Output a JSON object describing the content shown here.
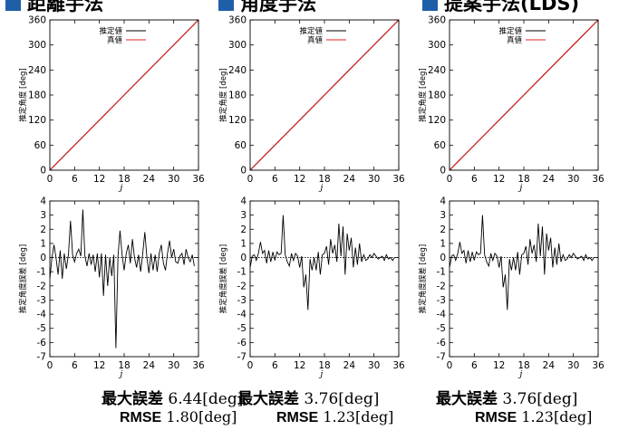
{
  "headers": [
    "距離手法",
    "角度手法",
    "提案手法(LDS)"
  ],
  "chart_data": [
    {
      "type": "line",
      "panel": "estimate",
      "method_index": 0,
      "xlabel": "j",
      "ylabel": "推定角度 [deg]",
      "xlim": [
        0,
        36
      ],
      "ylim": [
        0,
        360
      ],
      "xticks": [
        "0",
        "6",
        "12",
        "18",
        "24",
        "30",
        "36"
      ],
      "yticks": [
        "0",
        "60",
        "120",
        "180",
        "240",
        "300",
        "360"
      ],
      "legend_position": "top-left",
      "series": [
        {
          "name": "推定値",
          "color": "#000000",
          "x": [
            0,
            36
          ],
          "y": [
            0,
            360
          ]
        },
        {
          "name": "真値",
          "color": "#e02020",
          "x": [
            0,
            36
          ],
          "y": [
            0,
            360
          ]
        }
      ]
    },
    {
      "type": "line",
      "panel": "estimate",
      "method_index": 1,
      "xlabel": "j",
      "ylabel": "推定角度 [deg]",
      "xlim": [
        0,
        36
      ],
      "ylim": [
        0,
        360
      ],
      "xticks": [
        "0",
        "6",
        "12",
        "18",
        "24",
        "30",
        "36"
      ],
      "yticks": [
        "0",
        "60",
        "120",
        "180",
        "240",
        "300",
        "360"
      ],
      "legend_position": "top-left",
      "series": [
        {
          "name": "推定値",
          "color": "#000000",
          "x": [
            0,
            36
          ],
          "y": [
            0,
            360
          ]
        },
        {
          "name": "真値",
          "color": "#e02020",
          "x": [
            0,
            36
          ],
          "y": [
            0,
            360
          ]
        }
      ]
    },
    {
      "type": "line",
      "panel": "estimate",
      "method_index": 2,
      "xlabel": "j",
      "ylabel": "推定角度 [deg]",
      "xlim": [
        0,
        36
      ],
      "ylim": [
        0,
        360
      ],
      "xticks": [
        "0",
        "6",
        "12",
        "18",
        "24",
        "30",
        "36"
      ],
      "yticks": [
        "0",
        "60",
        "120",
        "180",
        "240",
        "300",
        "360"
      ],
      "legend_position": "top-left",
      "series": [
        {
          "name": "推定値",
          "color": "#000000",
          "x": [
            0,
            36
          ],
          "y": [
            0,
            360
          ]
        },
        {
          "name": "真値",
          "color": "#e02020",
          "x": [
            0,
            36
          ],
          "y": [
            0,
            360
          ]
        }
      ]
    },
    {
      "type": "line",
      "panel": "error",
      "method_index": 0,
      "xlabel": "j",
      "ylabel": "推定角度誤差 [deg]",
      "xlim": [
        0,
        36
      ],
      "ylim": [
        -7,
        4
      ],
      "xticks": [
        "0",
        "6",
        "12",
        "18",
        "24",
        "30",
        "36"
      ],
      "yticks": [
        "-7",
        "-6",
        "-5",
        "-4",
        "-3",
        "-2",
        "-1",
        "0",
        "1",
        "2",
        "3",
        "4"
      ],
      "series": [
        {
          "color": "#000000",
          "x": [
            0,
            0.5,
            1,
            1.5,
            2,
            2.5,
            3,
            3.5,
            4,
            4.5,
            5,
            5.5,
            6,
            6.5,
            7,
            7.5,
            8,
            8.5,
            9,
            9.5,
            10,
            10.5,
            11,
            11.5,
            12,
            12.5,
            13,
            13.5,
            14,
            14.5,
            15,
            15.5,
            16,
            16.5,
            17,
            17.5,
            18,
            18.5,
            19,
            19.5,
            20,
            20.5,
            21,
            21.5,
            22,
            22.5,
            23,
            23.5,
            24,
            24.5,
            25,
            25.5,
            26,
            26.5,
            27,
            27.5,
            28,
            28.5,
            29,
            29.5,
            30,
            30.5,
            31,
            31.5,
            32,
            32.5,
            33,
            33.5,
            34,
            34.5,
            35
          ],
          "y": [
            -1.5,
            0,
            0.9,
            0,
            -1.2,
            0.5,
            -1.5,
            0.3,
            -0.8,
            0.2,
            2.6,
            0.2,
            -0.3,
            0.3,
            0.6,
            0.1,
            3.4,
            0.1,
            -0.6,
            0.3,
            -0.5,
            0.2,
            -1.0,
            0.3,
            -1.4,
            0.3,
            -2.7,
            0.2,
            -2.0,
            0,
            -1.3,
            0.2,
            -6.4,
            0.1,
            1.9,
            0.2,
            -0.9,
            0.3,
            0.9,
            -0.4,
            1.3,
            0,
            -0.7,
            0.2,
            -1.0,
            0.3,
            1.8,
            0,
            -1.1,
            0.3,
            -0.9,
            0.2,
            -1.0,
            0.3,
            0.9,
            -0.4,
            -0.9,
            0.3,
            1.2,
            0,
            0.6,
            -0.3,
            -0.4,
            0.1,
            0.3,
            -0.5,
            0.6,
            0,
            -0.3,
            0.2,
            -0.6
          ]
        }
      ]
    },
    {
      "type": "line",
      "panel": "error",
      "method_index": 1,
      "xlabel": "j",
      "ylabel": "推定角度誤差 [deg]",
      "xlim": [
        0,
        36
      ],
      "ylim": [
        -7,
        4
      ],
      "xticks": [
        "0",
        "6",
        "12",
        "18",
        "24",
        "30",
        "36"
      ],
      "yticks": [
        "-7",
        "-6",
        "-5",
        "-4",
        "-3",
        "-2",
        "-1",
        "0",
        "1",
        "2",
        "3",
        "4"
      ],
      "series": [
        {
          "color": "#000000",
          "x": [
            0,
            0.5,
            1,
            1.5,
            2,
            2.5,
            3,
            3.5,
            4,
            4.5,
            5,
            5.5,
            6,
            6.5,
            7,
            7.5,
            8,
            8.5,
            9,
            9.5,
            10,
            10.5,
            11,
            11.5,
            12,
            12.5,
            13,
            13.5,
            14,
            14.5,
            15,
            15.5,
            16,
            16.5,
            17,
            17.5,
            18,
            18.5,
            19,
            19.5,
            20,
            20.5,
            21,
            21.5,
            22,
            22.5,
            23,
            23.5,
            24,
            24.5,
            25,
            25.5,
            26,
            26.5,
            27,
            27.5,
            28,
            28.5,
            29,
            29.5,
            30,
            30.5,
            31,
            31.5,
            32,
            32.5,
            33,
            33.5,
            34,
            34.5,
            35
          ],
          "y": [
            -0.7,
            0.1,
            0.2,
            -0.2,
            0.3,
            1.1,
            0.3,
            0.5,
            -0.4,
            0.5,
            -0.3,
            0.4,
            -0.2,
            0.4,
            0.2,
            0.3,
            3.0,
            0.2,
            -0.3,
            -0.6,
            0.3,
            -0.2,
            0.3,
            0.1,
            -0.7,
            0.1,
            -2.1,
            -1.2,
            -3.7,
            -0.1,
            -0.9,
            0,
            -0.9,
            0.4,
            -1.2,
            0.2,
            0.3,
            0.8,
            -0.5,
            1.3,
            0.3,
            0.9,
            -0.3,
            2.4,
            0.1,
            2.2,
            -1.2,
            1.7,
            0.5,
            1.4,
            -0.7,
            0.7,
            -0.5,
            1.0,
            -0.3,
            0.2,
            -0.2,
            -0.1,
            0.2,
            0,
            0.3,
            0.1,
            -0.1,
            0,
            0.1,
            -0.2,
            0.2,
            -0.1,
            0,
            -0.2,
            0
          ]
        }
      ]
    },
    {
      "type": "line",
      "panel": "error",
      "method_index": 2,
      "xlabel": "j",
      "ylabel": "推定角度誤差 [deg]",
      "xlim": [
        0,
        36
      ],
      "ylim": [
        -7,
        4
      ],
      "xticks": [
        "0",
        "6",
        "12",
        "18",
        "24",
        "30",
        "36"
      ],
      "yticks": [
        "-7",
        "-6",
        "-5",
        "-4",
        "-3",
        "-2",
        "-1",
        "0",
        "1",
        "2",
        "3",
        "4"
      ],
      "series": [
        {
          "color": "#000000",
          "x": [
            0,
            0.5,
            1,
            1.5,
            2,
            2.5,
            3,
            3.5,
            4,
            4.5,
            5,
            5.5,
            6,
            6.5,
            7,
            7.5,
            8,
            8.5,
            9,
            9.5,
            10,
            10.5,
            11,
            11.5,
            12,
            12.5,
            13,
            13.5,
            14,
            14.5,
            15,
            15.5,
            16,
            16.5,
            17,
            17.5,
            18,
            18.5,
            19,
            19.5,
            20,
            20.5,
            21,
            21.5,
            22,
            22.5,
            23,
            23.5,
            24,
            24.5,
            25,
            25.5,
            26,
            26.5,
            27,
            27.5,
            28,
            28.5,
            29,
            29.5,
            30,
            30.5,
            31,
            31.5,
            32,
            32.5,
            33,
            33.5,
            34,
            34.5,
            35
          ],
          "y": [
            -0.7,
            0.1,
            0.2,
            -0.2,
            0.3,
            1.1,
            0.3,
            0.5,
            -0.4,
            0.5,
            -0.3,
            0.4,
            -0.2,
            0.4,
            0.2,
            0.3,
            3.0,
            0.2,
            -0.3,
            -0.6,
            0.3,
            -0.2,
            0.3,
            0.1,
            -0.7,
            0.1,
            -2.1,
            -1.2,
            -3.7,
            -0.1,
            -0.9,
            0,
            -0.9,
            0.4,
            -1.2,
            0.2,
            0.3,
            0.8,
            -0.5,
            1.3,
            0.3,
            0.9,
            -0.3,
            2.4,
            0.1,
            2.2,
            -1.2,
            1.7,
            0.5,
            1.4,
            -0.7,
            0.7,
            -0.5,
            1.0,
            -0.3,
            0.2,
            -0.2,
            -0.1,
            0.2,
            0,
            0.3,
            0.1,
            -0.1,
            0,
            0.1,
            -0.2,
            0.2,
            -0.1,
            0,
            -0.2,
            0
          ]
        }
      ]
    }
  ],
  "stats": [
    {
      "max_label": "最大誤差",
      "max_value": "6.44[deg]",
      "rmse_label": "RMSE",
      "rmse_value": "1.80[deg]"
    },
    {
      "max_label": "最大誤差",
      "max_value": "3.76[deg]",
      "rmse_label": "RMSE",
      "rmse_value": "1.23[deg]"
    },
    {
      "max_label": "最大誤差",
      "max_value": "3.76[deg]",
      "rmse_label": "RMSE",
      "rmse_value": "1.23[deg]"
    }
  ],
  "colors": {
    "accent": "#1f5fa8",
    "estimate": "#000000",
    "truth": "#e02020"
  }
}
